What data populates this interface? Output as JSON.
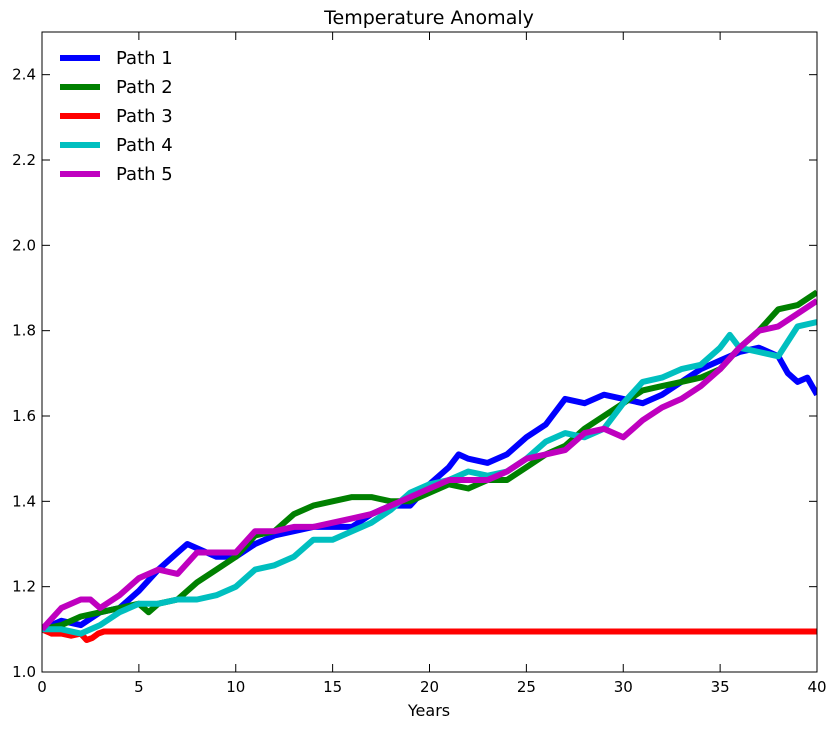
{
  "chart_data": {
    "type": "line",
    "title": "Temperature Anomaly",
    "xlabel": "Years",
    "ylabel": "",
    "xlim": [
      0,
      40
    ],
    "ylim": [
      1.0,
      2.5
    ],
    "xticks": [
      "0",
      "5",
      "10",
      "15",
      "20",
      "25",
      "30",
      "35",
      "40"
    ],
    "yticks": [
      "1.0",
      "1.2",
      "1.4",
      "1.6",
      "1.8",
      "2.0",
      "2.2",
      "2.4"
    ],
    "grid": false,
    "legend_position": "top-left",
    "series": [
      {
        "name": "Path 1",
        "color": "#0000ff",
        "x": [
          0,
          1,
          2,
          3,
          4,
          5,
          6,
          7,
          7.5,
          8,
          9,
          10,
          11,
          12,
          13,
          14,
          15,
          16,
          17,
          18,
          19,
          20,
          21,
          21.5,
          22,
          23,
          24,
          25,
          26,
          27,
          28,
          29,
          30,
          31,
          32,
          33,
          34,
          35,
          36,
          37,
          38,
          38.5,
          39,
          39.5,
          40
        ],
        "y": [
          1.1,
          1.12,
          1.11,
          1.14,
          1.15,
          1.19,
          1.24,
          1.28,
          1.3,
          1.29,
          1.27,
          1.27,
          1.3,
          1.32,
          1.33,
          1.34,
          1.34,
          1.34,
          1.37,
          1.39,
          1.39,
          1.44,
          1.48,
          1.51,
          1.5,
          1.49,
          1.51,
          1.55,
          1.58,
          1.64,
          1.63,
          1.65,
          1.64,
          1.63,
          1.65,
          1.68,
          1.71,
          1.73,
          1.75,
          1.76,
          1.74,
          1.7,
          1.68,
          1.69,
          1.65
        ]
      },
      {
        "name": "Path 2",
        "color": "#008000",
        "x": [
          0,
          1,
          2,
          3,
          4,
          5,
          5.5,
          6,
          7,
          8,
          9,
          10,
          11,
          12,
          13,
          14,
          15,
          16,
          17,
          18,
          19,
          20,
          21,
          22,
          23,
          24,
          25,
          26,
          27,
          28,
          29,
          30,
          31,
          32,
          33,
          34,
          35,
          36,
          37,
          38,
          39,
          40
        ],
        "y": [
          1.1,
          1.11,
          1.13,
          1.14,
          1.15,
          1.16,
          1.14,
          1.16,
          1.17,
          1.21,
          1.24,
          1.27,
          1.32,
          1.33,
          1.37,
          1.39,
          1.4,
          1.41,
          1.41,
          1.4,
          1.4,
          1.42,
          1.44,
          1.43,
          1.45,
          1.45,
          1.48,
          1.51,
          1.53,
          1.57,
          1.6,
          1.63,
          1.66,
          1.67,
          1.68,
          1.69,
          1.71,
          1.76,
          1.8,
          1.85,
          1.86,
          1.89
        ]
      },
      {
        "name": "Path 3",
        "color": "#ff0000",
        "x": [
          0,
          0.5,
          1,
          1.5,
          2,
          2.3,
          2.6,
          2.9,
          3.2,
          4,
          10,
          20,
          30,
          40
        ],
        "y": [
          1.1,
          1.09,
          1.09,
          1.085,
          1.09,
          1.075,
          1.08,
          1.09,
          1.095,
          1.095,
          1.095,
          1.095,
          1.095,
          1.095
        ]
      },
      {
        "name": "Path 4",
        "color": "#00bfbf",
        "x": [
          0,
          1,
          2,
          3,
          4,
          5,
          6,
          7,
          8,
          9,
          10,
          11,
          12,
          13,
          14,
          15,
          16,
          17,
          18,
          19,
          20,
          21,
          22,
          23,
          24,
          25,
          26,
          27,
          28,
          29,
          30,
          31,
          32,
          33,
          34,
          35,
          35.5,
          36,
          37,
          38,
          39,
          40
        ],
        "y": [
          1.1,
          1.1,
          1.09,
          1.11,
          1.14,
          1.16,
          1.16,
          1.17,
          1.17,
          1.18,
          1.2,
          1.24,
          1.25,
          1.27,
          1.31,
          1.31,
          1.33,
          1.35,
          1.38,
          1.42,
          1.44,
          1.45,
          1.47,
          1.46,
          1.47,
          1.5,
          1.54,
          1.56,
          1.55,
          1.57,
          1.63,
          1.68,
          1.69,
          1.71,
          1.72,
          1.76,
          1.79,
          1.76,
          1.75,
          1.74,
          1.81,
          1.82
        ]
      },
      {
        "name": "Path 5",
        "color": "#bf00bf",
        "x": [
          0,
          1,
          2,
          2.5,
          3,
          4,
          5,
          6,
          7,
          8,
          9,
          10,
          11,
          12,
          13,
          14,
          15,
          16,
          17,
          18,
          19,
          20,
          21,
          22,
          23,
          24,
          25,
          26,
          27,
          28,
          29,
          30,
          31,
          32,
          33,
          34,
          35,
          36,
          37,
          38,
          39,
          40
        ],
        "y": [
          1.1,
          1.15,
          1.17,
          1.17,
          1.15,
          1.18,
          1.22,
          1.24,
          1.23,
          1.28,
          1.28,
          1.28,
          1.33,
          1.33,
          1.34,
          1.34,
          1.35,
          1.36,
          1.37,
          1.39,
          1.41,
          1.43,
          1.45,
          1.45,
          1.45,
          1.47,
          1.5,
          1.51,
          1.52,
          1.56,
          1.57,
          1.55,
          1.59,
          1.62,
          1.64,
          1.67,
          1.71,
          1.76,
          1.8,
          1.81,
          1.84,
          1.87
        ]
      }
    ]
  }
}
